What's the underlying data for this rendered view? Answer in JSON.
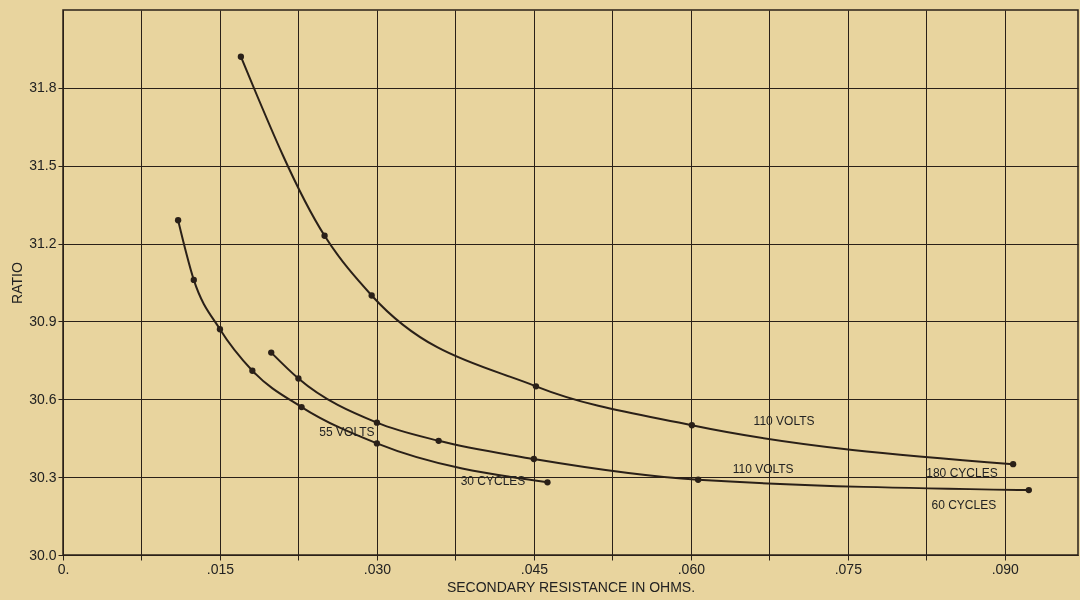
{
  "chart_data": {
    "type": "line",
    "xlabel": "SECONDARY RESISTANCE IN OHMS.",
    "ylabel": "RATIO",
    "xlim": [
      0,
      0.097
    ],
    "ylim": [
      30.0,
      32.1
    ],
    "xticks": [
      {
        "value": 0,
        "label": "0."
      },
      {
        "value": 0.0075,
        "label": null
      },
      {
        "value": 0.015,
        "label": ".015"
      },
      {
        "value": 0.0225,
        "label": null
      },
      {
        "value": 0.03,
        "label": ".030"
      },
      {
        "value": 0.0375,
        "label": null
      },
      {
        "value": 0.045,
        "label": ".045"
      },
      {
        "value": 0.0525,
        "label": null
      },
      {
        "value": 0.06,
        "label": ".060"
      },
      {
        "value": 0.0675,
        "label": null
      },
      {
        "value": 0.075,
        "label": ".075"
      },
      {
        "value": 0.0825,
        "label": null
      },
      {
        "value": 0.09,
        "label": ".090"
      }
    ],
    "yticks": [
      {
        "value": 30.0,
        "label": "30.0"
      },
      30.3,
      30.6,
      30.9,
      31.2,
      31.5,
      31.8
    ],
    "grid": true,
    "marker": "circle",
    "line_style": "solid",
    "series": [
      {
        "color": "#2a2018",
        "x": [
          0.017,
          0.025,
          0.0295,
          0.0452,
          0.0601,
          0.0908
        ],
        "values": [
          31.92,
          31.23,
          31.0,
          30.65,
          30.5,
          30.35
        ]
      },
      {
        "color": "#2a2018",
        "x": [
          0.0199,
          0.0225,
          0.03,
          0.0359,
          0.045,
          0.0607,
          0.0923
        ],
        "values": [
          30.78,
          30.68,
          30.51,
          30.44,
          30.37,
          30.29,
          30.25
        ]
      },
      {
        "color": "#2a2018",
        "x": [
          0.011,
          0.0125,
          0.015,
          0.0181,
          0.0228,
          0.03,
          0.0463
        ],
        "values": [
          31.29,
          31.06,
          30.87,
          30.71,
          30.57,
          30.43,
          30.28
        ]
      }
    ],
    "annotations": [
      {
        "text": "110 VOLTS",
        "x": 0.066,
        "y": 30.47
      },
      {
        "text": "180 CYCLES",
        "x": 0.0825,
        "y": 30.38
      },
      {
        "text": "110 VOLTS",
        "x": 0.064,
        "y": 30.285
      },
      {
        "text": "60 CYCLES",
        "x": 0.083,
        "y": 30.26
      },
      {
        "text": "55 VOLTS",
        "x": 0.0245,
        "y": 30.54
      },
      {
        "text": "30 CYCLES",
        "x": 0.038,
        "y": 30.35
      }
    ]
  }
}
